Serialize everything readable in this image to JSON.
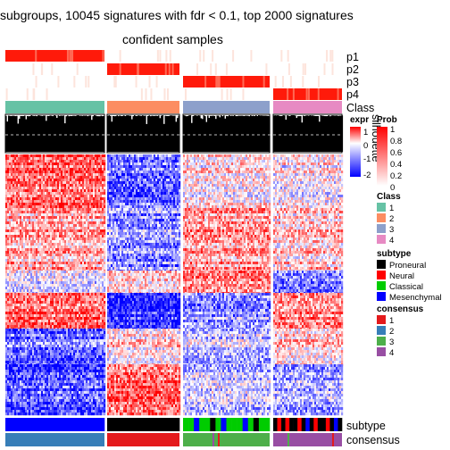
{
  "chart_data": {
    "type": "heatmap",
    "title": "subgroups, 10045 signatures with fdr < 0.1, top 2000 signatures",
    "subtitle": "confident samples",
    "groups": [
      "1",
      "2",
      "3",
      "4"
    ],
    "annotation_labels": [
      "p1",
      "p2",
      "p3",
      "p4",
      "Class",
      "silhouette",
      "subtype",
      "consensus"
    ],
    "expr_legend": {
      "title": "expr",
      "ticks": [
        "1",
        "0",
        "-1",
        "-2"
      ],
      "range": [
        -2,
        1
      ]
    },
    "prob_legend": {
      "title": "Prob",
      "ticks": [
        "1",
        "0.8",
        "0.6",
        "0.4",
        "0.2",
        "0"
      ],
      "range": [
        0,
        1
      ]
    },
    "class_legend": {
      "title": "Class",
      "items": [
        {
          "label": "1",
          "color": "#66C2A5"
        },
        {
          "label": "2",
          "color": "#FC8D62"
        },
        {
          "label": "3",
          "color": "#8DA0CB"
        },
        {
          "label": "4",
          "color": "#E78AC3"
        }
      ]
    },
    "subtype_legend": {
      "title": "subtype",
      "items": [
        {
          "label": "Proneural",
          "color": "#000000"
        },
        {
          "label": "Neural",
          "color": "#FF0000"
        },
        {
          "label": "Classical",
          "color": "#00CC00"
        },
        {
          "label": "Mesenchymal",
          "color": "#0000FF"
        }
      ]
    },
    "consensus_legend": {
      "title": "consensus",
      "items": [
        {
          "label": "1",
          "color": "#E41A1C"
        },
        {
          "label": "2",
          "color": "#377EB8"
        },
        {
          "label": "3",
          "color": "#4DAF4A"
        },
        {
          "label": "4",
          "color": "#984EA3"
        }
      ]
    }
  }
}
